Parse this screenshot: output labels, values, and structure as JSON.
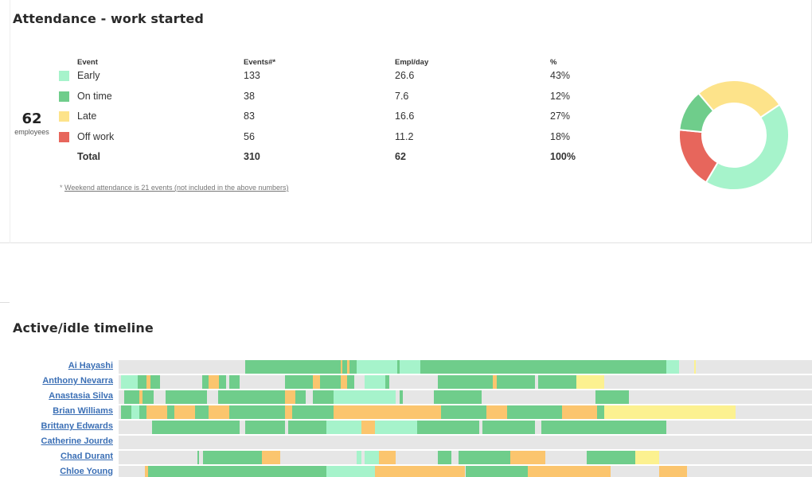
{
  "attendance": {
    "title": "Attendance - work started",
    "employees_count": "62",
    "employees_label": "employees",
    "columns": {
      "event": "Event",
      "events": "Events#*",
      "empl_day": "Empl/day",
      "pct": "%"
    },
    "rows": [
      {
        "label": "Early",
        "events": "133",
        "empl_day": "26.6",
        "pct": "43%",
        "color": "#a6f3cb",
        "value": 133
      },
      {
        "label": "On time",
        "events": "38",
        "empl_day": "7.6",
        "pct": "12%",
        "color": "#6fcd8b",
        "value": 38
      },
      {
        "label": "Late",
        "events": "83",
        "empl_day": "16.6",
        "pct": "27%",
        "color": "#fde38a",
        "value": 83
      },
      {
        "label": "Off work",
        "events": "56",
        "empl_day": "11.2",
        "pct": "18%",
        "color": "#e7665c",
        "value": 56
      }
    ],
    "total": {
      "label": "Total",
      "events": "310",
      "empl_day": "62",
      "pct": "100%"
    },
    "footnote_prefix": "* ",
    "footnote_link": "Weekend attendance is 21 events (not included in the above numbers)"
  },
  "timeline": {
    "title": "Active/idle timeline",
    "colors": {
      "active": "#6fcd8b",
      "idle": "#fbc56e",
      "light": "#a6f3cb",
      "pale": "#fcf190",
      "empty": "#e6e6e6"
    },
    "rows": [
      {
        "name": "Ai Hayashi",
        "segments": [
          [
            "active",
            0.182,
            0.32
          ],
          [
            "idle",
            0.32,
            0.323
          ],
          [
            "active",
            0.323,
            0.33
          ],
          [
            "idle",
            0.33,
            0.333
          ],
          [
            "active",
            0.333,
            0.343
          ],
          [
            "light",
            0.343,
            0.402
          ],
          [
            "active",
            0.402,
            0.405
          ],
          [
            "light",
            0.405,
            0.435
          ],
          [
            "active",
            0.435,
            0.79
          ],
          [
            "light",
            0.79,
            0.808
          ],
          [
            "pale",
            0.83,
            0.832
          ]
        ]
      },
      {
        "name": "Anthony Nevarra",
        "segments": [
          [
            "light",
            0.003,
            0.028
          ],
          [
            "active",
            0.028,
            0.04
          ],
          [
            "idle",
            0.04,
            0.046
          ],
          [
            "active",
            0.046,
            0.06
          ],
          [
            "active",
            0.12,
            0.13
          ],
          [
            "idle",
            0.13,
            0.145
          ],
          [
            "active",
            0.145,
            0.155
          ],
          [
            "active",
            0.16,
            0.175
          ],
          [
            "active",
            0.24,
            0.28
          ],
          [
            "idle",
            0.28,
            0.29
          ],
          [
            "active",
            0.29,
            0.32
          ],
          [
            "idle",
            0.32,
            0.33
          ],
          [
            "active",
            0.33,
            0.34
          ],
          [
            "light",
            0.355,
            0.385
          ],
          [
            "active",
            0.385,
            0.39
          ],
          [
            "active",
            0.46,
            0.54
          ],
          [
            "idle",
            0.54,
            0.545
          ],
          [
            "active",
            0.545,
            0.6
          ],
          [
            "active",
            0.605,
            0.66
          ],
          [
            "pale",
            0.66,
            0.7
          ]
        ]
      },
      {
        "name": "Anastasia Silva",
        "segments": [
          [
            "active",
            0.008,
            0.03
          ],
          [
            "idle",
            0.03,
            0.035
          ],
          [
            "active",
            0.035,
            0.05
          ],
          [
            "active",
            0.068,
            0.128
          ],
          [
            "active",
            0.143,
            0.24
          ],
          [
            "idle",
            0.24,
            0.255
          ],
          [
            "active",
            0.255,
            0.27
          ],
          [
            "active",
            0.28,
            0.31
          ],
          [
            "light",
            0.31,
            0.4
          ],
          [
            "active",
            0.405,
            0.41
          ],
          [
            "active",
            0.455,
            0.523
          ],
          [
            "active",
            0.688,
            0.736
          ]
        ]
      },
      {
        "name": "Brian Williams",
        "segments": [
          [
            "active",
            0.003,
            0.018
          ],
          [
            "light",
            0.018,
            0.03
          ],
          [
            "active",
            0.03,
            0.04
          ],
          [
            "idle",
            0.04,
            0.07
          ],
          [
            "active",
            0.07,
            0.08
          ],
          [
            "idle",
            0.08,
            0.11
          ],
          [
            "active",
            0.11,
            0.13
          ],
          [
            "idle",
            0.13,
            0.16
          ],
          [
            "active",
            0.16,
            0.24
          ],
          [
            "idle",
            0.24,
            0.25
          ],
          [
            "active",
            0.25,
            0.31
          ],
          [
            "idle",
            0.31,
            0.465
          ],
          [
            "active",
            0.465,
            0.53
          ],
          [
            "idle",
            0.53,
            0.56
          ],
          [
            "active",
            0.56,
            0.64
          ],
          [
            "idle",
            0.64,
            0.69
          ],
          [
            "active",
            0.69,
            0.7
          ],
          [
            "pale",
            0.7,
            0.89
          ]
        ]
      },
      {
        "name": "Brittany Edwards",
        "segments": [
          [
            "active",
            0.048,
            0.175
          ],
          [
            "active",
            0.182,
            0.24
          ],
          [
            "active",
            0.245,
            0.3
          ],
          [
            "light",
            0.3,
            0.35
          ],
          [
            "idle",
            0.35,
            0.37
          ],
          [
            "light",
            0.37,
            0.43
          ],
          [
            "active",
            0.43,
            0.52
          ],
          [
            "active",
            0.525,
            0.6
          ],
          [
            "active",
            0.61,
            0.79
          ]
        ]
      },
      {
        "name": "Catherine Jourde",
        "segments": []
      },
      {
        "name": "Chad Durant",
        "segments": [
          [
            "active",
            0.114,
            0.116
          ],
          [
            "active",
            0.122,
            0.14
          ],
          [
            "active",
            0.14,
            0.175
          ],
          [
            "active",
            0.175,
            0.207
          ],
          [
            "idle",
            0.207,
            0.233
          ],
          [
            "light",
            0.343,
            0.35
          ],
          [
            "light",
            0.355,
            0.375
          ],
          [
            "idle",
            0.375,
            0.4
          ],
          [
            "active",
            0.46,
            0.48
          ],
          [
            "active",
            0.49,
            0.565
          ],
          [
            "idle",
            0.565,
            0.615
          ],
          [
            "active",
            0.675,
            0.745
          ],
          [
            "pale",
            0.745,
            0.78
          ]
        ]
      },
      {
        "name": "Chloe Young",
        "segments": [
          [
            "idle",
            0.038,
            0.042
          ],
          [
            "active",
            0.042,
            0.06
          ],
          [
            "active",
            0.06,
            0.3
          ],
          [
            "light",
            0.3,
            0.37
          ],
          [
            "idle",
            0.37,
            0.5
          ],
          [
            "active",
            0.5,
            0.59
          ],
          [
            "idle",
            0.59,
            0.61
          ],
          [
            "idle",
            0.61,
            0.71
          ],
          [
            "idle",
            0.78,
            0.82
          ]
        ]
      }
    ]
  }
}
